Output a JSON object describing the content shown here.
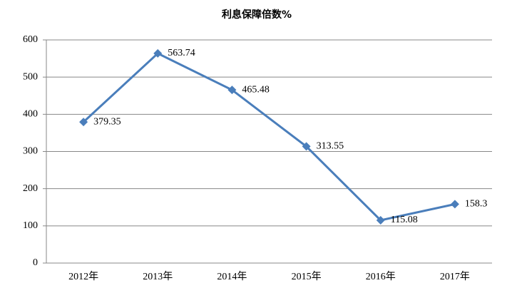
{
  "chart_data": {
    "type": "line",
    "title": "利息保障倍数%",
    "categories": [
      "2012年",
      "2013年",
      "2014年",
      "2015年",
      "2016年",
      "2017年"
    ],
    "values": [
      379.35,
      563.74,
      465.48,
      313.55,
      115.08,
      158.3
    ],
    "color": "#4a7ebb",
    "ylim": [
      0,
      600
    ],
    "yticks": [
      0,
      100,
      200,
      300,
      400,
      500,
      600
    ],
    "grid": true
  }
}
